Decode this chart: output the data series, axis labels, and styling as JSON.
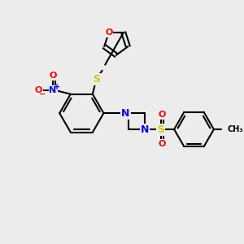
{
  "bg_color": "#ececec",
  "bond_color": "#000000",
  "atom_colors": {
    "O": "#ff0000",
    "N": "#0000ff",
    "S": "#cccc00",
    "S_sulfonyl": "#cccc00"
  },
  "font_size": 9,
  "figsize": [
    3.0,
    3.0
  ],
  "dpi": 100
}
